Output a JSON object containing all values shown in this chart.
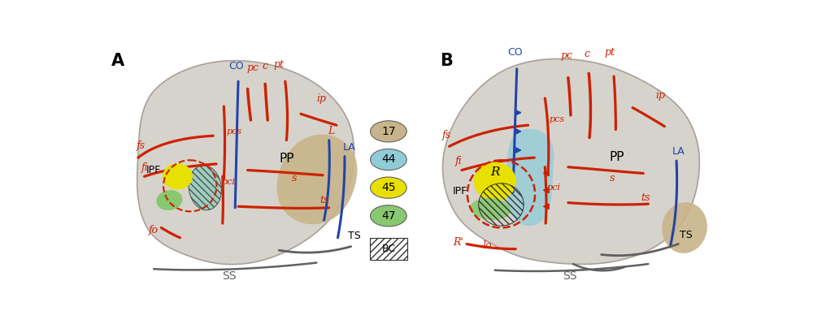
{
  "background_color": "#ffffff",
  "brain_color": "#d6d3cc",
  "brain_edge_color": "#a8a098",
  "red_color": "#cc2200",
  "blue_color": "#2244aa",
  "tan_color": "#c8b48a",
  "light_blue_color": "#90ccd8",
  "yellow_color": "#e8e000",
  "green_color": "#88c870",
  "gray_color": "#606060",
  "panel_A": "A",
  "panel_B": "B",
  "legend_items": [
    {
      "label": "17",
      "color": "#c8b48a"
    },
    {
      "label": "44",
      "color": "#90ccd8"
    },
    {
      "label": "45",
      "color": "#e8e000"
    },
    {
      "label": "47",
      "color": "#88c870"
    }
  ],
  "bc_label": "BC"
}
